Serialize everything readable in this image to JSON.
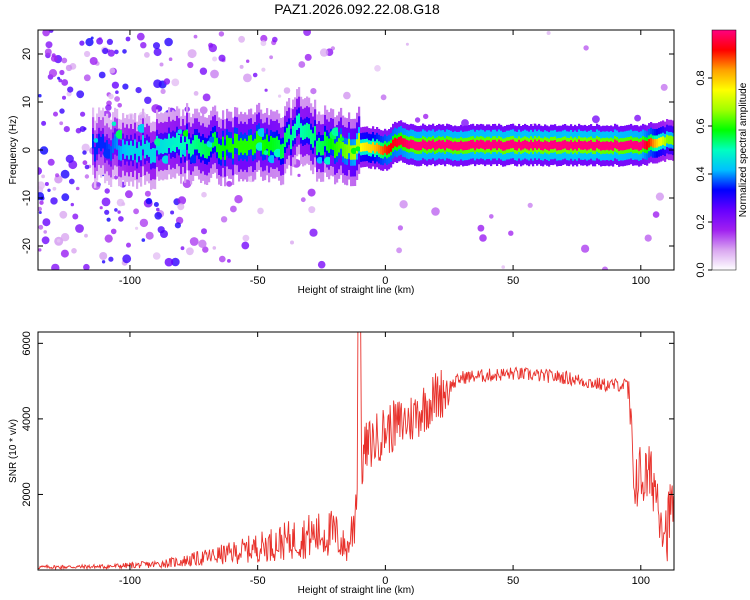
{
  "figure": {
    "title": "PAZ1.2026.092.22.08.G18"
  },
  "chart_data": [
    {
      "type": "heatmap",
      "title": "PAZ1.2026.092.22.08.G18",
      "xlabel": "Height of straight line (km)",
      "ylabel": "Frequency (Hz)",
      "xlim": [
        -136,
        113
      ],
      "ylim": [
        -25,
        25
      ],
      "xticks": [
        -100,
        -50,
        0,
        50,
        100
      ],
      "yticks": [
        -20,
        -10,
        0,
        10,
        20
      ],
      "colorbar": {
        "label": "Normalized spectral amplitude",
        "range": [
          0,
          1
        ],
        "ticks": [
          "0.0",
          "0.2",
          "0.4",
          "0.6",
          "0.8"
        ],
        "colors": [
          "#ffffff",
          "#d9a6f0",
          "#a020f0",
          "#6600ff",
          "#0000ff",
          "#00c0ff",
          "#00ffc0",
          "#00ff00",
          "#a0ff00",
          "#ffff00",
          "#ffa000",
          "#ff0000",
          "#ff0080"
        ]
      },
      "ridge": [
        {
          "x": -110,
          "f": 0.5,
          "a": 0.35
        },
        {
          "x": -100,
          "f": 0.2,
          "a": 0.45
        },
        {
          "x": -90,
          "f": 0.0,
          "a": 0.45
        },
        {
          "x": -80,
          "f": 1.5,
          "a": 0.5
        },
        {
          "x": -70,
          "f": 1.0,
          "a": 0.55
        },
        {
          "x": -60,
          "f": 0.5,
          "a": 0.6
        },
        {
          "x": -50,
          "f": 2.0,
          "a": 0.6
        },
        {
          "x": -40,
          "f": 1.0,
          "a": 0.55
        },
        {
          "x": -35,
          "f": 5.0,
          "a": 0.5
        },
        {
          "x": -25,
          "f": 1.0,
          "a": 0.55
        },
        {
          "x": -15,
          "f": 1.0,
          "a": 0.65
        },
        {
          "x": -5,
          "f": 0.5,
          "a": 0.75
        },
        {
          "x": 0,
          "f": 0.0,
          "a": 0.85
        },
        {
          "x": 5,
          "f": 2.0,
          "a": 0.9
        },
        {
          "x": 10,
          "f": 1.0,
          "a": 0.95
        },
        {
          "x": 20,
          "f": 1.0,
          "a": 0.95
        },
        {
          "x": 50,
          "f": 1.0,
          "a": 0.98
        },
        {
          "x": 80,
          "f": 1.0,
          "a": 0.98
        },
        {
          "x": 100,
          "f": 1.0,
          "a": 0.95
        },
        {
          "x": 110,
          "f": 2.0,
          "a": 0.6
        }
      ]
    },
    {
      "type": "line",
      "xlabel": "Height of straight line (km)",
      "ylabel": "SNR (10 * v/v)",
      "xlim": [
        -136,
        113
      ],
      "ylim": [
        0,
        6300
      ],
      "xticks": [
        -100,
        -50,
        0,
        50,
        100
      ],
      "yticks": [
        2000,
        4000,
        6000
      ],
      "color": "#e8312b",
      "envelope": [
        {
          "x": -136,
          "y": 100
        },
        {
          "x": -110,
          "y": 120
        },
        {
          "x": -90,
          "y": 200
        },
        {
          "x": -80,
          "y": 300
        },
        {
          "x": -70,
          "y": 450
        },
        {
          "x": -60,
          "y": 600
        },
        {
          "x": -50,
          "y": 800
        },
        {
          "x": -40,
          "y": 1000
        },
        {
          "x": -30,
          "y": 1200
        },
        {
          "x": -20,
          "y": 1300
        },
        {
          "x": -15,
          "y": 700
        },
        {
          "x": -12,
          "y": 1800
        },
        {
          "x": -8,
          "y": 3200
        },
        {
          "x": 0,
          "y": 3700
        },
        {
          "x": 10,
          "y": 4000
        },
        {
          "x": 20,
          "y": 4600
        },
        {
          "x": 30,
          "y": 5100
        },
        {
          "x": 50,
          "y": 5200
        },
        {
          "x": 70,
          "y": 5100
        },
        {
          "x": 85,
          "y": 4900
        },
        {
          "x": 95,
          "y": 4900
        },
        {
          "x": 97,
          "y": 2500
        },
        {
          "x": 105,
          "y": 2400
        },
        {
          "x": 110,
          "y": 1000
        },
        {
          "x": 113,
          "y": 2000
        }
      ]
    }
  ]
}
